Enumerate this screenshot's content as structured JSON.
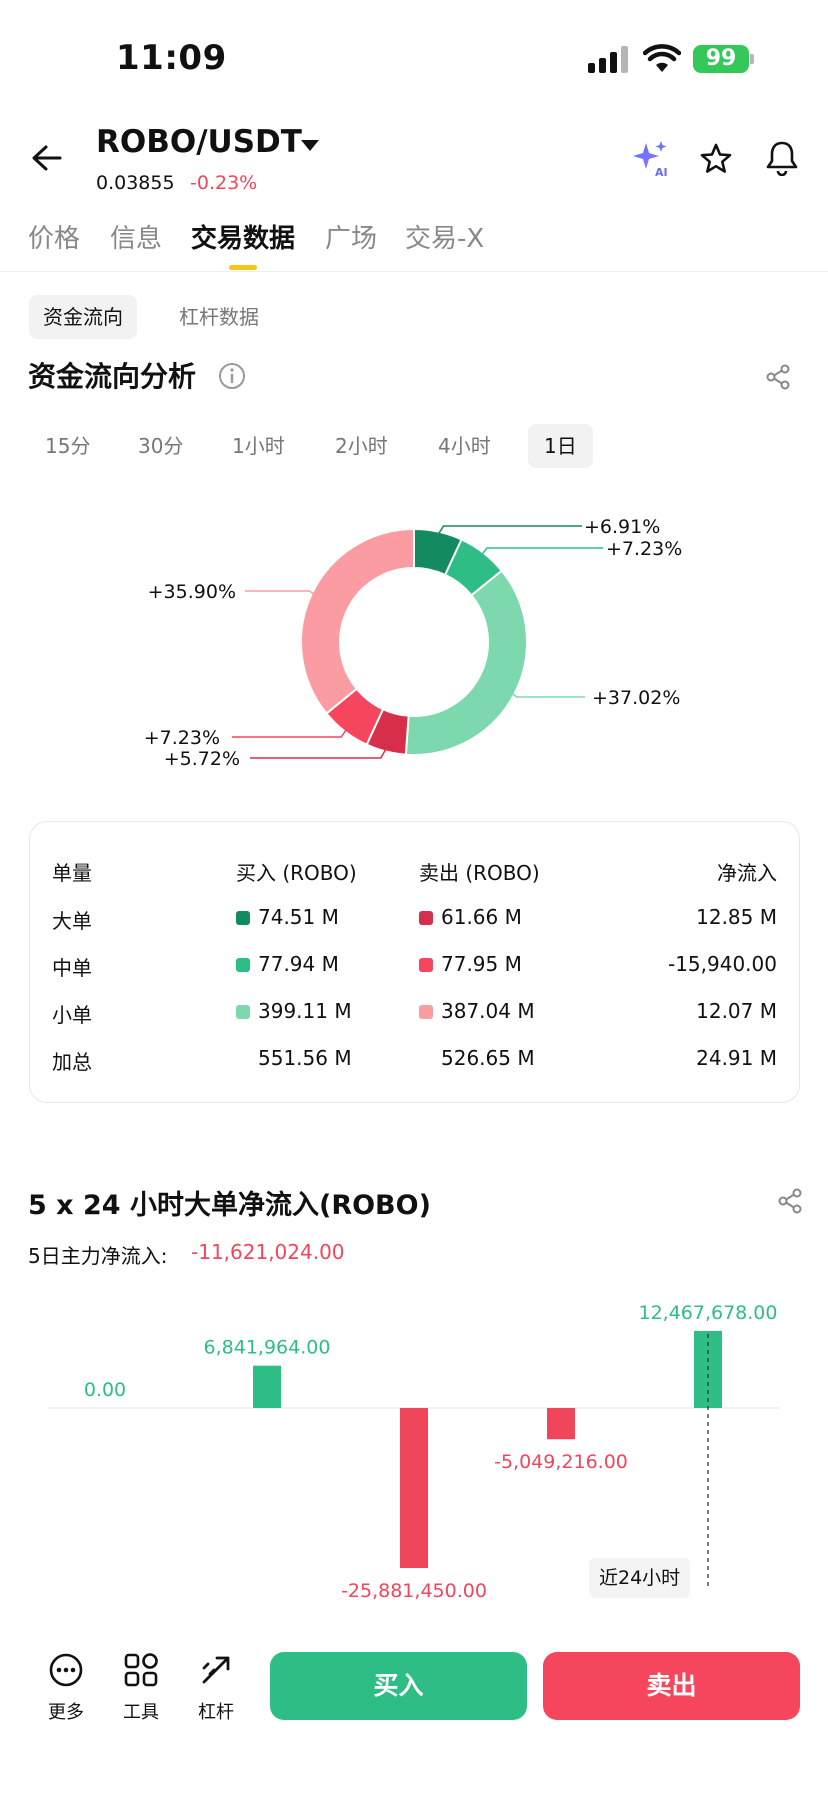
{
  "status_bar": {
    "time": "11:09",
    "battery": "99"
  },
  "header": {
    "pair": "ROBO/USDT",
    "price": "0.03855",
    "change": "-0.23%",
    "tabs": [
      {
        "label": "价格",
        "active": false
      },
      {
        "label": "信息",
        "active": false
      },
      {
        "label": "交易数据",
        "active": true
      },
      {
        "label": "广场",
        "active": false
      },
      {
        "label": "交易-X",
        "active": false
      }
    ]
  },
  "segments": [
    {
      "label": "资金流向",
      "active": true
    },
    {
      "label": "杠杆数据",
      "active": false
    }
  ],
  "section": {
    "title": "资金流向分析",
    "periods": [
      {
        "label": "15分",
        "active": false
      },
      {
        "label": "30分",
        "active": false
      },
      {
        "label": "1小时",
        "active": false
      },
      {
        "label": "2小时",
        "active": false
      },
      {
        "label": "4小时",
        "active": false
      },
      {
        "label": "1日",
        "active": true
      }
    ]
  },
  "colors": {
    "buy_large": "#138a60",
    "buy_medium": "#2ebd85",
    "buy_small": "#7dd8ad",
    "sell_large": "#d72f4b",
    "sell_medium": "#f6465d",
    "sell_small": "#fb9ca2",
    "positive": "#2ebd85",
    "negative": "#f0465c"
  },
  "flow_table": {
    "headers": {
      "size": "单量",
      "buy": "买入 (ROBO)",
      "sell": "卖出 (ROBO)",
      "net": "净流入"
    },
    "rows": [
      {
        "size": "大单",
        "buy": "74.51 M",
        "sell": "61.66 M",
        "net": "12.85 M"
      },
      {
        "size": "中单",
        "buy": "77.94 M",
        "sell": "77.95 M",
        "net": "-15,940.00"
      },
      {
        "size": "小单",
        "buy": "399.11 M",
        "sell": "387.04 M",
        "net": "12.07 M"
      },
      {
        "size": "加总",
        "buy": "551.56 M",
        "sell": "526.65 M",
        "net": "24.91 M"
      }
    ]
  },
  "bar_section": {
    "title": "5 x 24 小时大单净流入(ROBO)",
    "main_flow_label": "5日主力净流入:",
    "main_flow_value": "-11,621,024.00",
    "recent_label": "近24小时"
  },
  "chart_data": [
    {
      "type": "pie",
      "slices": [
        {
          "label": "+6.91%",
          "value": 6.91,
          "color": "#138a60"
        },
        {
          "label": "+7.23%",
          "value": 7.23,
          "color": "#2ebd85"
        },
        {
          "label": "+37.02%",
          "value": 37.02,
          "color": "#7dd8ad"
        },
        {
          "label": "+5.72%",
          "value": 5.72,
          "color": "#d72f4b"
        },
        {
          "label": "+7.23%",
          "value": 7.23,
          "color": "#f6465d"
        },
        {
          "label": "+35.90%",
          "value": 35.9,
          "color": "#fb9ca2"
        }
      ]
    },
    {
      "type": "bar",
      "values": [
        0,
        6841964,
        -25881450,
        -5049216,
        12467678
      ],
      "value_labels": [
        "0.00",
        "6,841,964.00",
        "-25,881,450.00",
        "-5,049,216.00",
        "12,467,678.00"
      ]
    }
  ],
  "bottom_bar": {
    "more": "更多",
    "tools": "工具",
    "leverage": "杠杆",
    "buy": "买入",
    "sell": "卖出"
  }
}
